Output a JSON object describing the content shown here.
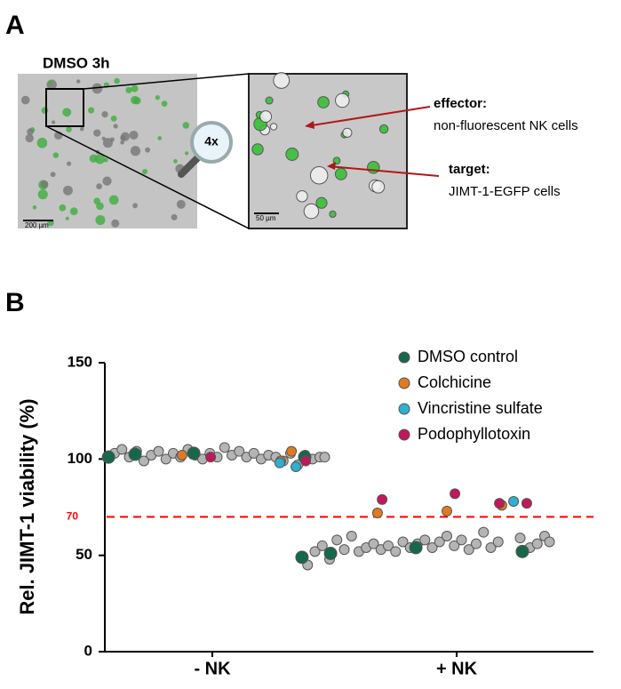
{
  "panel_a": {
    "label": "A",
    "left_image": {
      "title": "DMSO 3h",
      "scale_bar": "200 µm"
    },
    "magnifier": "4x",
    "right_image": {
      "scale_bar": "50 µm"
    },
    "annotations": [
      {
        "title": "effector:",
        "text": "non-fluorescent NK cells"
      },
      {
        "title": "target:",
        "text": "JIMT-1-EGFP cells"
      }
    ]
  },
  "panel_b": {
    "label": "B"
  },
  "chart_data": {
    "type": "scatter",
    "y_label": "Rel. JIMT-1 viability (%)",
    "xlim": [
      0,
      2
    ],
    "xticks": [
      {
        "value": 0.44,
        "label": "- NK"
      },
      {
        "value": 1.44,
        "label": "+ NK"
      }
    ],
    "ylim": [
      0,
      150
    ],
    "yticks": [
      0,
      50,
      100,
      150
    ],
    "threshold": 70,
    "threshold_color": "#ff0000",
    "legend": "upper right",
    "series": [
      {
        "color": "#b4b4b4",
        "x": [
          0.04,
          0.07,
          0.1,
          0.13,
          0.16,
          0.19,
          0.22,
          0.25,
          0.28,
          0.31,
          0.34,
          0.37,
          0.4,
          0.43,
          0.46,
          0.49,
          0.52,
          0.55,
          0.58,
          0.61,
          0.64,
          0.67,
          0.7,
          0.73,
          0.76,
          0.79,
          0.82,
          0.85,
          0.88,
          0.9,
          0.83,
          0.86,
          0.89,
          0.92,
          0.95,
          0.98,
          1.01,
          1.04,
          1.07,
          1.1,
          1.13,
          1.16,
          1.19,
          1.22,
          1.25,
          1.28,
          1.31,
          1.34,
          1.37,
          1.4,
          1.43,
          1.46,
          1.49,
          1.52,
          1.55,
          1.58,
          1.61,
          1.7,
          1.74,
          1.77,
          1.8,
          1.82
        ],
        "values": [
          103,
          105,
          101,
          104,
          99,
          102,
          104,
          100,
          103,
          101,
          105,
          102,
          100,
          103,
          101,
          106,
          102,
          104,
          101,
          103,
          100,
          102,
          101,
          99,
          103,
          97,
          102,
          100,
          101,
          101,
          45,
          52,
          55,
          48,
          58,
          53,
          60,
          52,
          54,
          56,
          53,
          55,
          52,
          57,
          54,
          56,
          58,
          54,
          57,
          60,
          55,
          58,
          53,
          56,
          62,
          54,
          57,
          59,
          54,
          56,
          60,
          57
        ]
      },
      {
        "name": "DMSO control",
        "color": "#17684a",
        "x": [
          0.015,
          0.124,
          0.364,
          0.818,
          0.807,
          0.924,
          1.273,
          1.709
        ],
        "values": [
          101,
          102.5,
          103,
          101,
          49,
          51,
          54,
          52
        ]
      },
      {
        "name": "Colchicine",
        "color": "#e07a20",
        "x": [
          0.316,
          0.764,
          0.72,
          1.116,
          1.4,
          1.625
        ],
        "values": [
          102,
          104,
          99,
          72,
          73,
          76
        ]
      },
      {
        "name": "Vincristine sulfate",
        "color": "#2eb0d0",
        "x": [
          0.716,
          0.782,
          1.673
        ],
        "values": [
          98,
          96,
          78
        ]
      },
      {
        "name": "Podophyllotoxin",
        "color": "#c0185a",
        "x": [
          0.433,
          0.822,
          1.135,
          1.433,
          1.615,
          1.727
        ],
        "values": [
          101,
          99,
          79,
          82,
          77,
          77
        ]
      }
    ]
  }
}
